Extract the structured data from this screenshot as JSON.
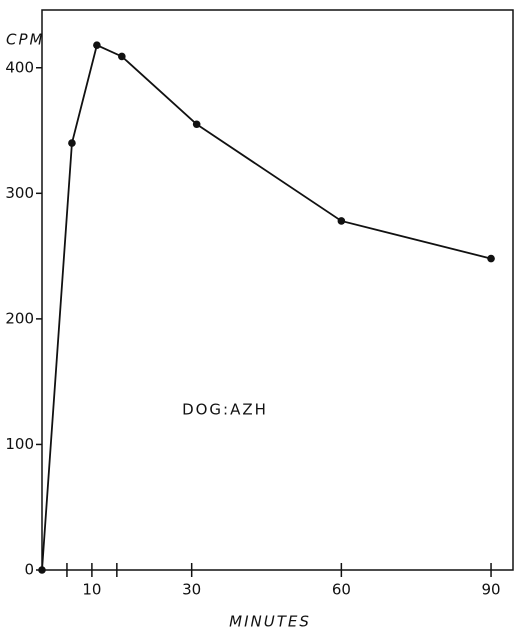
{
  "chart_data": {
    "type": "line",
    "y_axis_label": "CPM",
    "x_axis_label": "MINUTES",
    "annotation": "DOG:AZH",
    "x": [
      0,
      6,
      11,
      16,
      31,
      60,
      90
    ],
    "series": [
      {
        "name": "DOG:AZH",
        "color": "#111111",
        "values": [
          0,
          340,
          418,
          409,
          355,
          278,
          248
        ]
      }
    ],
    "xlim": [
      0,
      94.4
    ],
    "ylim": [
      0,
      446
    ],
    "xticks": [
      10,
      30,
      60,
      90
    ],
    "xminorticks": [
      5,
      15
    ],
    "yticks": [
      0,
      100,
      200,
      300,
      400
    ],
    "grid": false
  }
}
